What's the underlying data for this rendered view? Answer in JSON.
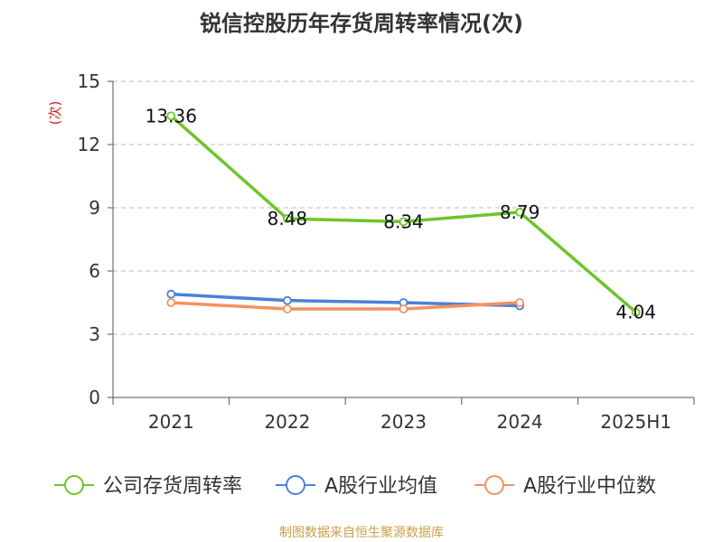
{
  "title": "锐信控股历年存货周转率情况(次)",
  "source": "制图数据来自恒生聚源数据库",
  "colors": {
    "series_company": "#6dc52a",
    "series_avg": "#4c7fdb",
    "series_median": "#f5915e",
    "unit_label": "#d11f1f",
    "axis": "#555555",
    "grid": "#bbbbbb",
    "text": "#333333"
  },
  "chart_data": {
    "type": "line",
    "title": "锐信控股历年存货周转率情况(次)",
    "ylabel": "(次)",
    "xlabel": "",
    "categories": [
      "2021",
      "2022",
      "2023",
      "2024",
      "2025H1"
    ],
    "ylim": [
      0,
      15
    ],
    "yticks": [
      0,
      3,
      6,
      9,
      12,
      15
    ],
    "grid": "horizontal dashed",
    "legend_position": "bottom",
    "series": [
      {
        "name": "公司存货周转率",
        "color": "#6dc52a",
        "values": [
          13.36,
          8.48,
          8.34,
          8.79,
          4.04
        ],
        "data_labels": [
          "13.36",
          "8.48",
          "8.34",
          "8.79",
          "4.04"
        ]
      },
      {
        "name": "A股行业均值",
        "color": "#4c7fdb",
        "values": [
          4.9,
          4.6,
          4.5,
          4.35,
          null
        ]
      },
      {
        "name": "A股行业中位数",
        "color": "#f5915e",
        "values": [
          4.5,
          4.2,
          4.2,
          4.5,
          null
        ]
      }
    ]
  }
}
